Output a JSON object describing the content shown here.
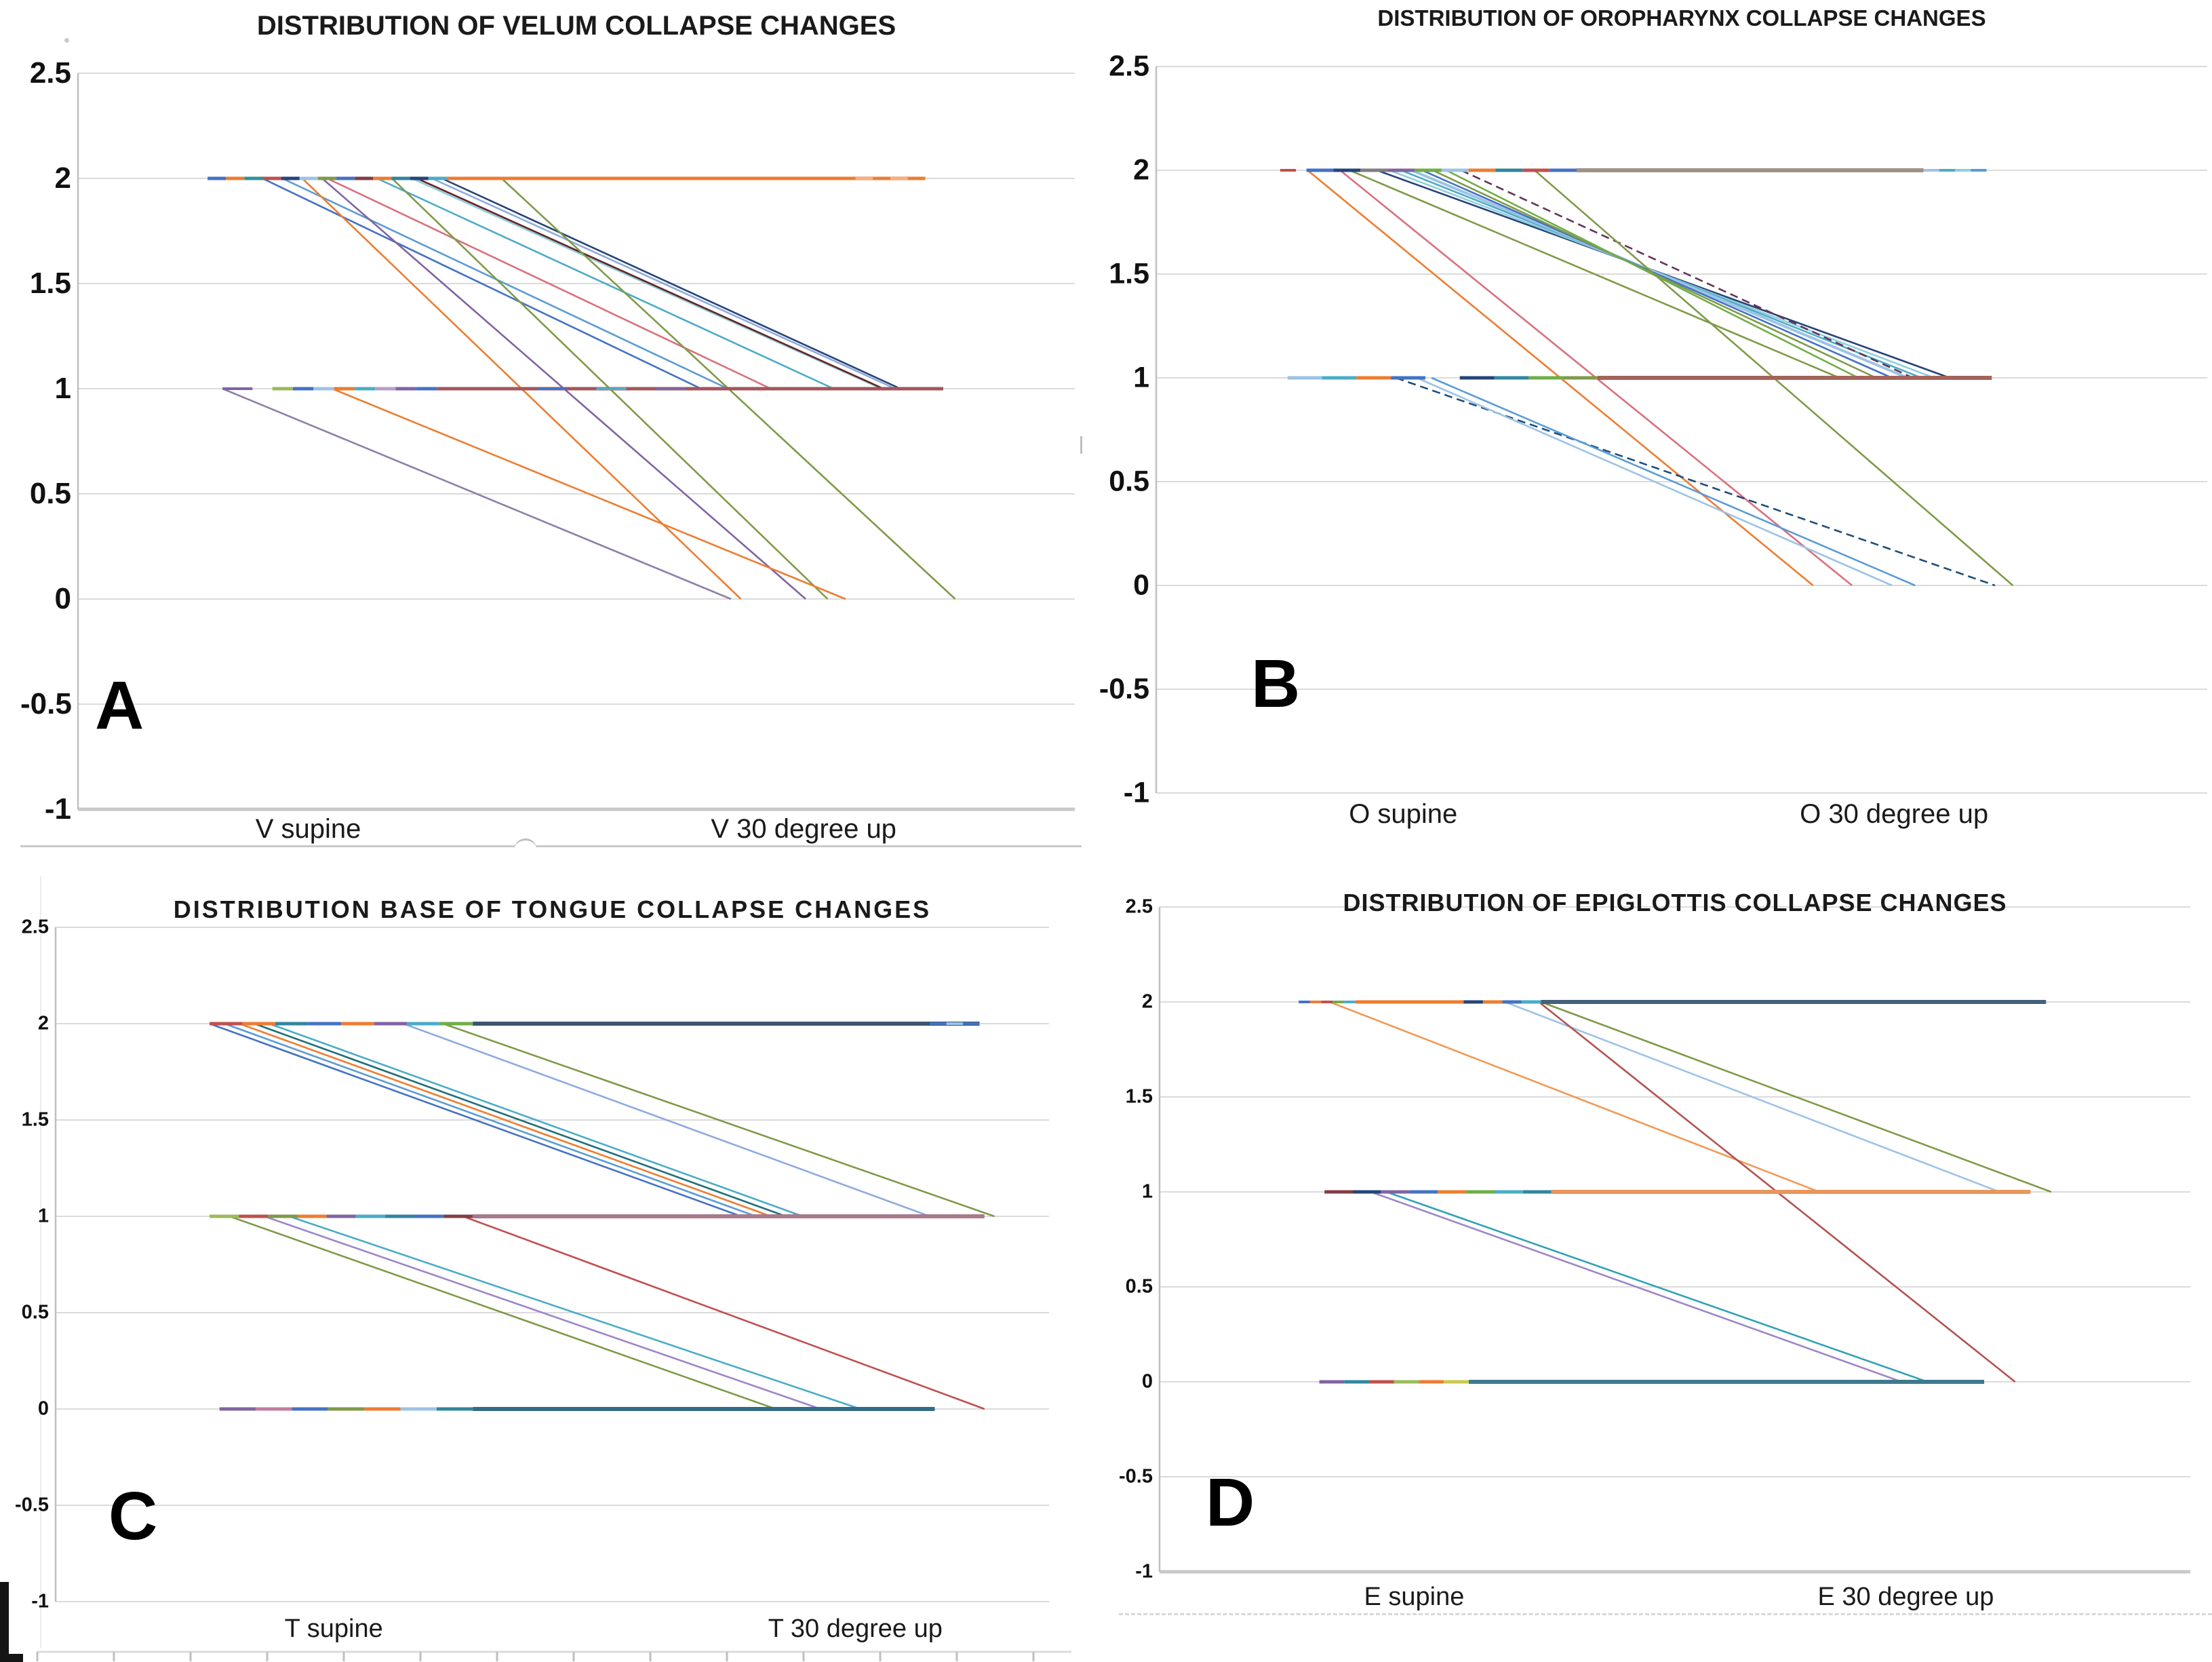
{
  "style": {
    "background": "#ffffff",
    "grid_color": "#dbdbdb",
    "axis_color": "#bfbfbf",
    "baseline_color": "#c9c9c9",
    "text_color": "#1a1a1a"
  },
  "chart_data": [
    {
      "type": "line",
      "variant": "paired-slope-graph",
      "panel_label": "A",
      "title": "DISTRIBUTION OF VELUM COLLAPSE CHANGES",
      "categories": [
        "V supine",
        "V 30 degree up"
      ],
      "ylim": [
        -1,
        2.5
      ],
      "yticks": [
        "2.5",
        "2",
        "1.5",
        "1",
        "0.5",
        "0",
        "-0.5",
        "-1"
      ],
      "grid": true,
      "legend": "none",
      "h_runs": [
        {
          "y": 2,
          "x1": 0.13,
          "x2": 0.37,
          "w": 5,
          "colors": [
            "#4472C4",
            "#ED7D31",
            "#2E9494",
            "#C0504D",
            "#264478",
            "#9DC3E6",
            "#7F9A48",
            "#4472C4",
            "#843C44",
            "#ED7D31",
            "#31859C",
            "#264478",
            "#4BACC6"
          ]
        },
        {
          "y": 2,
          "x1": 0.37,
          "x2": 0.85,
          "w": 5,
          "colors": [
            "#ED7D31"
          ]
        },
        {
          "y": 2,
          "x1": 0.78,
          "x2": 0.85,
          "w": 4,
          "colors": [
            "#F5B183",
            "#ED7D31",
            "#F5B183",
            "#ED7D31"
          ]
        },
        {
          "y": 1,
          "x1": 0.145,
          "x2": 0.175,
          "w": 4,
          "colors": [
            "#8064A2"
          ]
        },
        {
          "y": 1,
          "x1": 0.195,
          "x2": 0.36,
          "w": 5,
          "colors": [
            "#9BBB59",
            "#4472C4",
            "#9DC3E6",
            "#ED7D31",
            "#4BACC6",
            "#B3A2C7",
            "#8064A2",
            "#4472C4"
          ]
        },
        {
          "y": 1,
          "x1": 0.36,
          "x2": 0.868,
          "w": 5,
          "colors": [
            "#A4565A"
          ]
        },
        {
          "y": 1,
          "x1": 0.43,
          "x2": 0.64,
          "w": 4,
          "colors": [
            "none",
            "#4472C4",
            "none",
            "#4BACC6",
            "none",
            "#8064A2",
            "none"
          ]
        }
      ],
      "lines": [
        {
          "x1": 0.185,
          "y1": 2,
          "x2": 0.625,
          "y2": 1,
          "c": "#4472C4"
        },
        {
          "x1": 0.205,
          "y1": 2,
          "x2": 0.652,
          "y2": 1,
          "c": "#5B9BD5"
        },
        {
          "x1": 0.25,
          "y1": 2,
          "x2": 0.695,
          "y2": 1,
          "c": "#D9707D"
        },
        {
          "x1": 0.3,
          "y1": 2,
          "x2": 0.758,
          "y2": 1,
          "c": "#4BACC6"
        },
        {
          "x1": 0.335,
          "y1": 2,
          "x2": 0.806,
          "y2": 1,
          "c": "#92CDDC"
        },
        {
          "x1": 0.34,
          "y1": 2,
          "x2": 0.808,
          "y2": 1,
          "c": "#632523"
        },
        {
          "x1": 0.355,
          "y1": 2,
          "x2": 0.82,
          "y2": 1,
          "c": "#8FAADC"
        },
        {
          "x1": 0.365,
          "y1": 2,
          "x2": 0.825,
          "y2": 1,
          "c": "#264478"
        },
        {
          "x1": 0.225,
          "y1": 2,
          "x2": 0.665,
          "y2": 0,
          "c": "#ED7D31"
        },
        {
          "x1": 0.245,
          "y1": 2,
          "x2": 0.73,
          "y2": 0,
          "c": "#8064A2"
        },
        {
          "x1": 0.315,
          "y1": 2,
          "x2": 0.752,
          "y2": 0,
          "c": "#7F9A48"
        },
        {
          "x1": 0.425,
          "y1": 2,
          "x2": 0.88,
          "y2": 0,
          "c": "#7F9A48"
        },
        {
          "x1": 0.145,
          "y1": 1,
          "x2": 0.655,
          "y2": 0,
          "c": "#8E7FA8"
        },
        {
          "x1": 0.255,
          "y1": 1,
          "x2": 0.77,
          "y2": 0,
          "c": "#ED7D31"
        }
      ]
    },
    {
      "type": "line",
      "variant": "paired-slope-graph",
      "panel_label": "B",
      "title": "DISTRIBUTION OF OROPHARYNX COLLAPSE CHANGES",
      "categories": [
        "O supine",
        "O 30 degree up"
      ],
      "ylim": [
        -1,
        2.5
      ],
      "yticks": [
        "2.5",
        "2",
        "1.5",
        "1",
        "0.5",
        "0",
        "-0.5",
        "-1"
      ],
      "grid": true,
      "legend": "none",
      "h_runs": [
        {
          "y": 2,
          "x1": 0.118,
          "x2": 0.133,
          "w": 4,
          "colors": [
            "#C0504D"
          ]
        },
        {
          "y": 2,
          "x1": 0.143,
          "x2": 0.4,
          "w": 5,
          "colors": [
            "#4472C4",
            "#264478",
            "#7F7F7F",
            "#8064A2",
            "#70AD47",
            "#9DC3E6",
            "#ED7D31",
            "#31859C",
            "#C0504D",
            "#4472C4"
          ]
        },
        {
          "y": 2,
          "x1": 0.4,
          "x2": 0.73,
          "w": 6,
          "colors": [
            "#A39185"
          ]
        },
        {
          "y": 2,
          "x1": 0.73,
          "x2": 0.79,
          "w": 4,
          "colors": [
            "#9DC3E6",
            "#4BACC6",
            "#92CDDC",
            "#5B9BD5"
          ]
        },
        {
          "y": 1,
          "x1": 0.125,
          "x2": 0.42,
          "w": 5,
          "colors": [
            "#9DC3E6",
            "#4BACC6",
            "#ED7D31",
            "#4472C4",
            "none",
            "#264478",
            "#31859C",
            "#70AD47",
            "#7F9A48"
          ]
        },
        {
          "y": 1,
          "x1": 0.42,
          "x2": 0.795,
          "w": 6,
          "colors": [
            "#A4635A"
          ]
        }
      ],
      "lines": [
        {
          "x1": 0.21,
          "y1": 2,
          "x2": 0.755,
          "y2": 1,
          "c": "#264478"
        },
        {
          "x1": 0.222,
          "y1": 2,
          "x2": 0.74,
          "y2": 1,
          "c": "#92CDDC"
        },
        {
          "x1": 0.233,
          "y1": 2,
          "x2": 0.728,
          "y2": 1,
          "c": "#4BACC6"
        },
        {
          "x1": 0.243,
          "y1": 2,
          "x2": 0.715,
          "y2": 1,
          "c": "#9DC3E6",
          "w": 4
        },
        {
          "x1": 0.253,
          "y1": 2,
          "x2": 0.7,
          "y2": 1,
          "c": "#4472C4"
        },
        {
          "x1": 0.263,
          "y1": 2,
          "x2": 0.685,
          "y2": 1,
          "c": "#7F9A48"
        },
        {
          "x1": 0.276,
          "y1": 2,
          "x2": 0.668,
          "y2": 1,
          "c": "#70AD47"
        },
        {
          "x1": 0.184,
          "y1": 2,
          "x2": 0.65,
          "y2": 1,
          "c": "#7F9A48"
        },
        {
          "x1": 0.29,
          "y1": 2,
          "x2": 0.72,
          "y2": 1,
          "c": "#633657",
          "dash": "12 7"
        },
        {
          "x1": 0.144,
          "y1": 2,
          "x2": 0.625,
          "y2": 0,
          "c": "#ED7D31"
        },
        {
          "x1": 0.175,
          "y1": 2,
          "x2": 0.662,
          "y2": 0,
          "c": "#D9707D"
        },
        {
          "x1": 0.36,
          "y1": 2,
          "x2": 0.815,
          "y2": 0,
          "c": "#7F9A48"
        },
        {
          "x1": 0.228,
          "y1": 1,
          "x2": 0.798,
          "y2": 0,
          "c": "#1F4E79",
          "dash": "12 7"
        },
        {
          "x1": 0.248,
          "y1": 1,
          "x2": 0.7,
          "y2": 0,
          "c": "#9DC3E6"
        },
        {
          "x1": 0.262,
          "y1": 1,
          "x2": 0.722,
          "y2": 0,
          "c": "#5B9BD5"
        }
      ]
    },
    {
      "type": "line",
      "variant": "paired-slope-graph",
      "panel_label": "C",
      "title": "DISTRIBUTION BASE OF TONGUE COLLAPSE CHANGES",
      "categories": [
        "T supine",
        "T 30 degree up"
      ],
      "ylim": [
        -1,
        2.5
      ],
      "yticks": [
        "2.5",
        "2",
        "1.5",
        "1",
        "0.5",
        "0",
        "-0.5",
        "-1"
      ],
      "grid": true,
      "legend": "none",
      "h_runs": [
        {
          "y": 2,
          "x1": 0.155,
          "x2": 0.42,
          "w": 5,
          "colors": [
            "#C0504D",
            "#ED7D31",
            "#31859C",
            "#4472C4",
            "#ED7D31",
            "#8064A2",
            "#4BACC6",
            "#70AD47"
          ]
        },
        {
          "y": 2,
          "x1": 0.42,
          "x2": 0.93,
          "w": 6,
          "colors": [
            "#3B5470"
          ]
        },
        {
          "y": 2,
          "x1": 0.88,
          "x2": 0.93,
          "w": 4,
          "colors": [
            "#4472C4",
            "#9DC3E6",
            "#4472C4"
          ]
        },
        {
          "y": 1,
          "x1": 0.155,
          "x2": 0.42,
          "w": 5,
          "colors": [
            "#9BBB59",
            "#C0504D",
            "#7F9A48",
            "#ED7D31",
            "#8064A2",
            "#4BACC6",
            "#31859C",
            "#4472C4",
            "#843C44"
          ]
        },
        {
          "y": 1,
          "x1": 0.42,
          "x2": 0.935,
          "w": 6,
          "colors": [
            "#A9798C"
          ]
        },
        {
          "y": 0,
          "x1": 0.165,
          "x2": 0.42,
          "w": 5,
          "colors": [
            "#8064A2",
            "#C27BA0",
            "#4472C4",
            "#7F9A48",
            "#ED7D31",
            "#9DC3E6",
            "#31859C"
          ]
        },
        {
          "y": 0,
          "x1": 0.42,
          "x2": 0.885,
          "w": 6,
          "colors": [
            "#336B87"
          ]
        }
      ],
      "lines": [
        {
          "x1": 0.155,
          "y1": 2,
          "x2": 0.69,
          "y2": 1,
          "c": "#4472C4"
        },
        {
          "x1": 0.17,
          "y1": 2,
          "x2": 0.705,
          "y2": 1,
          "c": "#5B9BD5"
        },
        {
          "x1": 0.185,
          "y1": 2,
          "x2": 0.72,
          "y2": 1,
          "c": "#ED7D31"
        },
        {
          "x1": 0.2,
          "y1": 2,
          "x2": 0.735,
          "y2": 1,
          "c": "#1F6E78"
        },
        {
          "x1": 0.215,
          "y1": 2,
          "x2": 0.752,
          "y2": 1,
          "c": "#4BACC6"
        },
        {
          "x1": 0.35,
          "y1": 2,
          "x2": 0.88,
          "y2": 1,
          "c": "#8FAADC"
        },
        {
          "x1": 0.39,
          "y1": 2,
          "x2": 0.945,
          "y2": 1,
          "c": "#7F9A48"
        },
        {
          "x1": 0.175,
          "y1": 1,
          "x2": 0.725,
          "y2": 0,
          "c": "#7F9A48"
        },
        {
          "x1": 0.21,
          "y1": 1,
          "x2": 0.77,
          "y2": 0,
          "c": "#9E86C8"
        },
        {
          "x1": 0.235,
          "y1": 1,
          "x2": 0.81,
          "y2": 0,
          "c": "#4BACC6"
        },
        {
          "x1": 0.41,
          "y1": 1,
          "x2": 0.935,
          "y2": 0,
          "c": "#C0504D"
        }
      ]
    },
    {
      "type": "line",
      "variant": "paired-slope-graph",
      "panel_label": "D",
      "title": "DISTRIBUTION OF EPIGLOTTIS COLLAPSE CHANGES",
      "categories": [
        "E supine",
        "E 30 degree up"
      ],
      "ylim": [
        -1,
        2.5
      ],
      "yticks": [
        "2.5",
        "2",
        "1.5",
        "1",
        "0.5",
        "0",
        "-0.5",
        "-1"
      ],
      "grid": true,
      "legend": "none",
      "h_runs": [
        {
          "y": 2,
          "x1": 0.135,
          "x2": 0.19,
          "w": 4,
          "colors": [
            "#4472C4",
            "#ED7D31",
            "#C0504D",
            "#70AD47",
            "#4BACC6"
          ]
        },
        {
          "y": 2,
          "x1": 0.19,
          "x2": 0.295,
          "w": 5,
          "colors": [
            "#ED7D31"
          ]
        },
        {
          "y": 2,
          "x1": 0.295,
          "x2": 0.37,
          "w": 5,
          "colors": [
            "#264478",
            "#ED7D31",
            "#4472C4",
            "#4BACC6"
          ]
        },
        {
          "y": 2,
          "x1": 0.37,
          "x2": 0.86,
          "w": 6,
          "colors": [
            "#44607A"
          ]
        },
        {
          "y": 1,
          "x1": 0.16,
          "x2": 0.38,
          "w": 5,
          "colors": [
            "#843C44",
            "#264478",
            "#8064A2",
            "#4472C4",
            "#ED7D31",
            "#70AD47",
            "#4BACC6",
            "#31859C"
          ]
        },
        {
          "y": 1,
          "x1": 0.38,
          "x2": 0.845,
          "w": 6,
          "colors": [
            "#E8965A"
          ]
        },
        {
          "y": 0,
          "x1": 0.155,
          "x2": 0.3,
          "w": 5,
          "colors": [
            "#8064A2",
            "#31859C",
            "#C0504D",
            "#9BBB59",
            "#ED7D31",
            "#C9C94E"
          ]
        },
        {
          "y": 0,
          "x1": 0.3,
          "x2": 0.8,
          "w": 6,
          "colors": [
            "#3D7A8C"
          ]
        }
      ],
      "lines": [
        {
          "x1": 0.165,
          "y1": 2,
          "x2": 0.64,
          "y2": 1,
          "c": "#F09955"
        },
        {
          "x1": 0.335,
          "y1": 2,
          "x2": 0.815,
          "y2": 1,
          "c": "#9DC3E6"
        },
        {
          "x1": 0.37,
          "y1": 2,
          "x2": 0.865,
          "y2": 1,
          "c": "#7F9A48"
        },
        {
          "x1": 0.368,
          "y1": 2,
          "x2": 0.83,
          "y2": 0,
          "c": "#B05450"
        },
        {
          "x1": 0.205,
          "y1": 1,
          "x2": 0.72,
          "y2": 0,
          "c": "#9E86C8"
        },
        {
          "x1": 0.22,
          "y1": 1,
          "x2": 0.745,
          "y2": 0,
          "c": "#31A2B4"
        }
      ]
    }
  ]
}
